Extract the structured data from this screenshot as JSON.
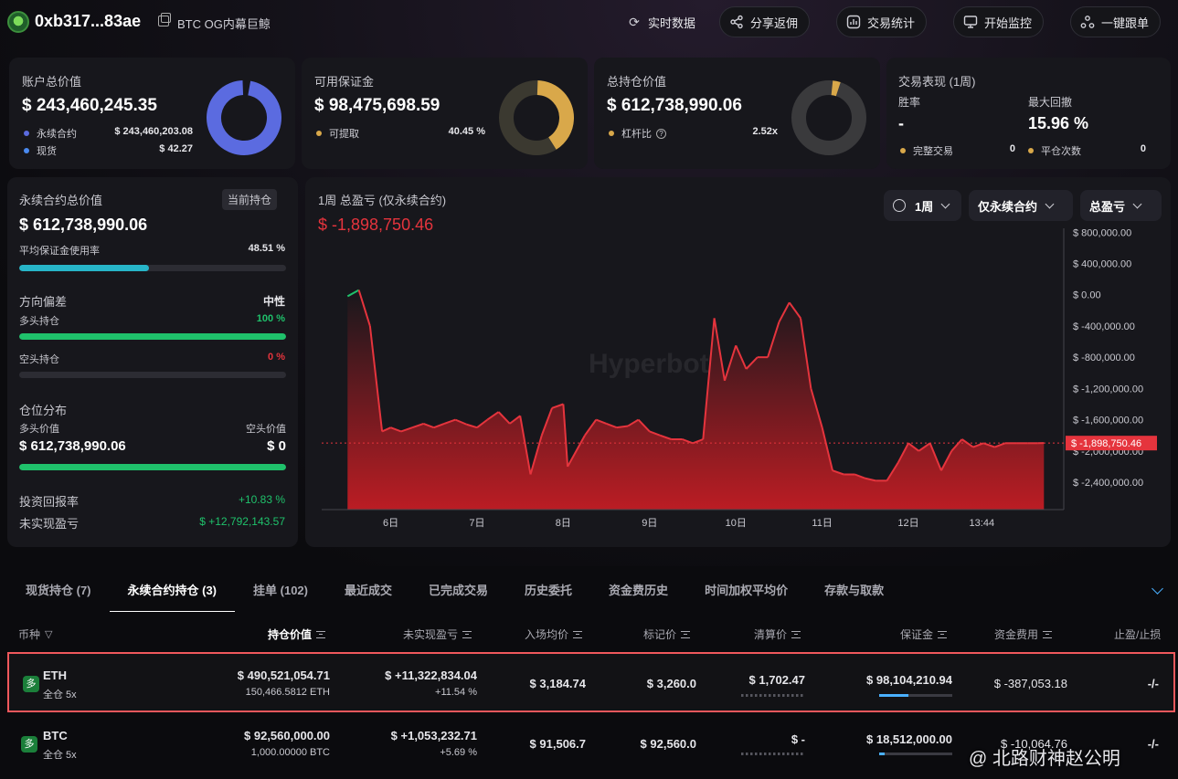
{
  "header": {
    "address": "0xb317...83ae",
    "tag": "BTC OG内幕巨鲸",
    "buttons": {
      "realtime": "实时数据",
      "share": "分享返佣",
      "stats": "交易统计",
      "monitor": "开始监控",
      "copytrade": "一键跟单"
    }
  },
  "summary": {
    "account": {
      "title": "账户总价值",
      "value": "$ 243,460,245.35",
      "perp_label": "永续合约",
      "perp_value": "$ 243,460,203.08",
      "spot_label": "现货",
      "spot_value": "$ 42.27",
      "perp_color": "#5b6be0",
      "spot_color": "#4a8af0"
    },
    "margin": {
      "title": "可用保证金",
      "value": "$ 98,475,698.59",
      "withdraw_label": "可提取",
      "withdraw_value": "40.45 %",
      "withdraw_fraction": 0.4045,
      "color": "#d9a84a"
    },
    "position": {
      "title": "总持仓价值",
      "value": "$ 612,738,990.06",
      "leverage_label": "杠杆比",
      "leverage_value": "2.52x",
      "color": "#d9a84a"
    },
    "performance": {
      "title": "交易表现 (1周)",
      "winrate_label": "胜率",
      "winrate_value": "-",
      "drawdown_label": "最大回撤",
      "drawdown_value": "15.96 %",
      "complete_label": "完整交易",
      "complete_value": "0",
      "close_label": "平仓次数",
      "close_value": "0"
    }
  },
  "left_panel": {
    "title": "永续合约总价值",
    "badge": "当前持仓",
    "value": "$ 612,738,990.06",
    "avg_margin_label": "平均保证金使用率",
    "avg_margin_value": "48.51 %",
    "avg_margin_fraction": 0.4851,
    "direction_label": "方向偏差",
    "direction_value": "中性",
    "long_label": "多头持仓",
    "long_value": "100 %",
    "long_fraction": 1.0,
    "short_label": "空头持仓",
    "short_value": "0 %",
    "short_fraction": 0.0,
    "dist_label": "仓位分布",
    "long_val_label": "多头价值",
    "short_val_label": "空头价值",
    "long_val": "$ 612,738,990.06",
    "short_val": "$ 0",
    "roi_label": "投资回报率",
    "roi_value": "+10.83 %",
    "upnl_label": "未实现盈亏",
    "upnl_value": "$ +12,792,143.57"
  },
  "chart_panel": {
    "title": "1周 总盈亏 (仅永续合约)",
    "value": "$ -1,898,750.46",
    "selectors": {
      "period": "1周",
      "scope": "仅永续合约",
      "metric": "总盈亏"
    },
    "watermark": "Hyperbot"
  },
  "chart_data": {
    "type": "area",
    "x_ticks": [
      "6日",
      "7日",
      "8日",
      "9日",
      "10日",
      "11日",
      "12日",
      "13:44"
    ],
    "y_ticks": [
      "$ 800,000.00",
      "$ 400,000.00",
      "$ 0.00",
      "$ -400,000.00",
      "$ -800,000.00",
      "$ -1,200,000.00",
      "$ -1,600,000.00",
      "$ -2,000,000.00",
      "$ -2,400,000.00"
    ],
    "y_tick_values": [
      800000,
      400000,
      0,
      -400000,
      -800000,
      -1200000,
      -1600000,
      -2000000,
      -2400000
    ],
    "ylim": [
      -2750000,
      850000
    ],
    "current_label": "$ -1,898,750.46",
    "current_value": -1898750.46,
    "up_color": "#1fc16b",
    "down_color": "#e5343d",
    "series": [
      {
        "x": [
          5.5,
          5.63,
          5.76,
          5.9,
          6.0,
          6.12,
          6.25,
          6.38,
          6.5,
          6.62,
          6.75,
          6.88,
          7.0,
          7.12,
          7.25,
          7.38,
          7.5,
          7.62,
          7.75,
          7.87,
          8.0,
          8.05,
          8.25,
          8.38,
          8.5,
          8.62,
          8.75,
          8.87,
          9.0,
          9.12,
          9.25,
          9.38,
          9.5,
          9.62,
          9.75,
          9.87,
          10.0,
          10.12,
          10.25,
          10.37,
          10.5,
          10.62,
          10.75,
          10.87,
          11.0,
          11.12,
          11.25,
          11.38,
          11.5,
          11.62,
          11.75,
          11.88,
          12.0,
          12.12,
          12.25,
          12.38,
          12.5,
          12.62,
          12.75,
          12.87,
          13.0,
          13.12,
          13.25,
          13.38,
          13.5,
          13.57
        ],
        "y": [
          -20000,
          60000,
          -400000,
          -1750000,
          -1700000,
          -1750000,
          -1700000,
          -1650000,
          -1700000,
          -1650000,
          -1600000,
          -1660000,
          -1700000,
          -1600000,
          -1500000,
          -1650000,
          -1550000,
          -2300000,
          -1800000,
          -1450000,
          -1400000,
          -2200000,
          -1800000,
          -1600000,
          -1650000,
          -1700000,
          -1680000,
          -1600000,
          -1750000,
          -1800000,
          -1850000,
          -1850000,
          -1900000,
          -1850000,
          -300000,
          -1100000,
          -650000,
          -950000,
          -800000,
          -800000,
          -350000,
          -100000,
          -300000,
          -1200000,
          -1700000,
          -2250000,
          -2300000,
          -2300000,
          -2350000,
          -2380000,
          -2380000,
          -2150000,
          -1900000,
          -2000000,
          -1900000,
          -2250000,
          -2000000,
          -1850000,
          -1950000,
          -1900000,
          -1950000,
          -1900000,
          -1900000,
          -1900000,
          -1900000,
          -1898750
        ]
      }
    ]
  },
  "tabs": [
    "现货持仓 (7)",
    "永续合约持仓 (3)",
    "挂单 (102)",
    "最近成交",
    "已完成交易",
    "历史委托",
    "资金费历史",
    "时间加权平均价",
    "存款与取款"
  ],
  "table": {
    "headers": {
      "coin": "币种",
      "value": "持仓价值",
      "upnl": "未实现盈亏",
      "entry": "入场均价",
      "mark": "标记价",
      "liq": "清算价",
      "margin": "保证金",
      "funding": "资金费用",
      "tpsl": "止盈/止损"
    },
    "rows": [
      {
        "side": "多",
        "coin": "ETH",
        "mode": "全仓 5x",
        "value": "$ 490,521,054.71",
        "size": "150,466.5812 ETH",
        "upnl": "$ +11,322,834.04",
        "upnl_pct": "+11.54 %",
        "entry": "$ 3,184.74",
        "mark": "$ 3,260.0",
        "liq": "$ 1,702.47",
        "margin": "$ 98,104,210.94",
        "margin_fraction": 0.4,
        "funding": "$ -387,053.18",
        "tpsl": "-/-"
      },
      {
        "side": "多",
        "coin": "BTC",
        "mode": "全仓 5x",
        "value": "$ 92,560,000.00",
        "size": "1,000.00000 BTC",
        "upnl": "$ +1,053,232.71",
        "upnl_pct": "+5.69 %",
        "entry": "$ 91,506.7",
        "mark": "$ 92,560.0",
        "liq": "$ -",
        "margin": "$ 18,512,000.00",
        "margin_fraction": 0.08,
        "funding": "$ -10,064.76",
        "tpsl": "-/-"
      }
    ]
  },
  "watermark_text": "@ 北路财神赵公明"
}
